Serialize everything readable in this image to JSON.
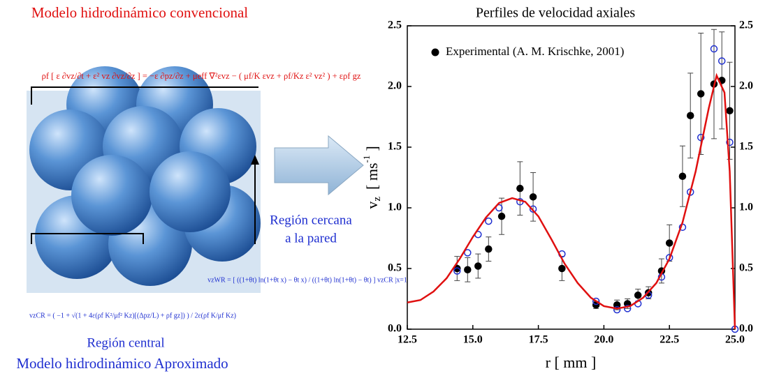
{
  "diagram": {
    "title": "Modelo hidrodinámico convencional",
    "equation_top": "ρf [ ε ∂vz/∂t + ε² vz ∂vz/∂z ] = −ε ∂pz/∂z + μeff ∇²εvz − ( μf/K εvz + ρf/Kz ε² vz² ) + ερf gz",
    "wall_label_1": "Región cercana",
    "wall_label_2": "a la pared",
    "equation_wall": "vzWR = [ ((1+θt) ln(1+θt x) − θt x) / ((1+θt) ln(1+θt) − θt) ] vzCR |x=1",
    "equation_central": "vzCR = ( −1 + √(1 + 4ε(ρf K²/μf² Kz)[(Δpz/L) + ρf gz]) ) / 2ε(ρf K/μf Kz)",
    "central_label": "Región central",
    "bottom_title": "Modelo hidrodinámico Aproximado"
  },
  "chart_data": {
    "type": "scatter",
    "title": "Perfiles de velocidad axiales",
    "x_label": "r [ mm ]",
    "y_label": [
      "v",
      "z",
      "[ ms",
      "-1",
      "]"
    ],
    "xlim": [
      12.5,
      25.0
    ],
    "xticks": [
      12.5,
      {
        "value": 15,
        "label": "15.0"
      },
      17.5,
      {
        "value": 20,
        "label": "20.0"
      },
      22.5,
      {
        "value": 25,
        "label": "25.0"
      }
    ],
    "ylim": [
      0,
      2.5
    ],
    "yticks": [
      {
        "value": 0,
        "label": "0.0"
      },
      {
        "value": 0.5,
        "label": "0.5"
      },
      {
        "value": 1,
        "label": "1.0"
      },
      {
        "value": 1.5,
        "label": "1.5"
      },
      {
        "value": 2,
        "label": "2.0"
      },
      {
        "value": 2.5,
        "label": "2.5"
      }
    ],
    "y2lim": [
      0,
      2.5
    ],
    "y2ticks": [
      {
        "value": 0,
        "label": "0.0"
      },
      {
        "value": 0.5,
        "label": "0.5"
      },
      {
        "value": 1,
        "label": "1.0"
      },
      {
        "value": 1.5,
        "label": "1.5"
      },
      {
        "value": 2,
        "label": "2.0"
      },
      {
        "value": 2.5,
        "label": "2.5"
      }
    ],
    "legend": "upper left",
    "series": [
      {
        "name": "Experimental (A. M. Krischke, 2001)",
        "type": "scatter",
        "marker": "filled",
        "color": "#000000",
        "x": [
          14.4,
          14.8,
          15.2,
          15.6,
          16.1,
          16.8,
          17.3,
          18.4,
          19.7,
          20.5,
          20.9,
          21.3,
          21.7,
          22.2,
          22.5,
          23.0,
          23.3,
          23.7,
          24.2,
          24.5,
          24.8
        ],
        "values": [
          0.5,
          0.49,
          0.52,
          0.66,
          0.93,
          1.16,
          1.09,
          0.5,
          0.2,
          0.2,
          0.21,
          0.28,
          0.3,
          0.48,
          0.71,
          1.26,
          1.76,
          1.94,
          2.02,
          2.05,
          1.8
        ],
        "errors": [
          0.1,
          0.1,
          0.1,
          0.1,
          0.15,
          0.22,
          0.2,
          0.1,
          0.03,
          0.04,
          0.04,
          0.05,
          0.05,
          0.1,
          0.15,
          0.25,
          0.35,
          0.5,
          0.45,
          0.4,
          0.4
        ]
      },
      {
        "type": "scatter",
        "marker": "open",
        "color": "#1f2fd0",
        "x": [
          14.4,
          14.8,
          15.2,
          15.6,
          16.0,
          16.8,
          17.3,
          18.4,
          19.7,
          20.5,
          20.9,
          21.3,
          21.7,
          22.2,
          22.5,
          23.0,
          23.3,
          23.7,
          24.2,
          24.5,
          24.8,
          25.0
        ],
        "values": [
          0.48,
          0.63,
          0.78,
          0.89,
          1.0,
          1.05,
          0.99,
          0.62,
          0.23,
          0.16,
          0.17,
          0.21,
          0.28,
          0.43,
          0.59,
          0.84,
          1.13,
          1.58,
          2.31,
          2.21,
          1.54,
          0.0
        ]
      },
      {
        "type": "line",
        "color": "#e01010",
        "x": [
          12.5,
          13.0,
          13.5,
          14.0,
          14.5,
          15.0,
          15.5,
          16.0,
          16.5,
          17.0,
          17.5,
          18.0,
          18.5,
          19.0,
          19.5,
          20.0,
          20.5,
          21.0,
          21.5,
          22.0,
          22.5,
          23.0,
          23.5,
          24.0,
          24.3,
          24.6,
          24.8,
          25.0
        ],
        "values": [
          0.22,
          0.24,
          0.31,
          0.42,
          0.58,
          0.76,
          0.92,
          1.04,
          1.08,
          1.05,
          0.93,
          0.74,
          0.54,
          0.38,
          0.26,
          0.19,
          0.17,
          0.19,
          0.26,
          0.38,
          0.58,
          0.88,
          1.3,
          1.82,
          2.09,
          1.95,
          1.3,
          0.0
        ]
      }
    ]
  }
}
